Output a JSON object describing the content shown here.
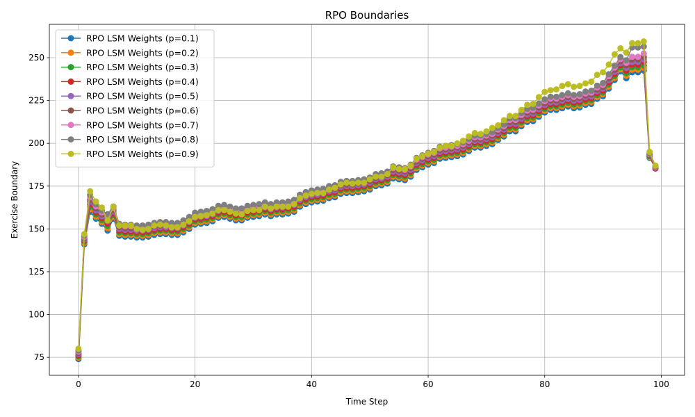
{
  "chart_data": {
    "type": "line",
    "title": "RPO Boundaries",
    "xlabel": "Time Step",
    "ylabel": "Exercise Boundary",
    "xlim": [
      -5,
      104
    ],
    "ylim": [
      64.5,
      269.5
    ],
    "xticks": [
      0,
      20,
      40,
      60,
      80,
      100
    ],
    "yticks": [
      75,
      100,
      125,
      150,
      175,
      200,
      225,
      250
    ],
    "grid": true,
    "legend_position": "upper left",
    "marker": "circle",
    "x": [
      0,
      1,
      2,
      3,
      4,
      5,
      6,
      7,
      8,
      9,
      10,
      11,
      12,
      13,
      14,
      15,
      16,
      17,
      18,
      19,
      20,
      21,
      22,
      23,
      24,
      25,
      26,
      27,
      28,
      29,
      30,
      31,
      32,
      33,
      34,
      35,
      36,
      37,
      38,
      39,
      40,
      41,
      42,
      43,
      44,
      45,
      46,
      47,
      48,
      49,
      50,
      51,
      52,
      53,
      54,
      55,
      56,
      57,
      58,
      59,
      60,
      61,
      62,
      63,
      64,
      65,
      66,
      67,
      68,
      69,
      70,
      71,
      72,
      73,
      74,
      75,
      76,
      77,
      78,
      79,
      80,
      81,
      82,
      83,
      84,
      85,
      86,
      87,
      88,
      89,
      90,
      91,
      92,
      93,
      94,
      95,
      96,
      97,
      98,
      99
    ],
    "series": [
      {
        "name": "RPO LSM Weights (p=0.1)",
        "color": "#1f77b4",
        "values": [
          74,
          141,
          160,
          156,
          153,
          149,
          156,
          146,
          145.5,
          145.5,
          145,
          145,
          145.5,
          146.5,
          147,
          147,
          146.5,
          146.5,
          148,
          150,
          152.5,
          153,
          153.5,
          154.5,
          156.5,
          157,
          156,
          155,
          155,
          156.5,
          157,
          157.5,
          158.5,
          157.5,
          158.5,
          158.5,
          159,
          160,
          163,
          164.5,
          165.5,
          166,
          166.5,
          168,
          168.5,
          170.5,
          171,
          171,
          171.5,
          172,
          173,
          175,
          175.5,
          176.5,
          179.5,
          179,
          178.5,
          180.5,
          184.5,
          186,
          187.5,
          188.5,
          191,
          191.5,
          192,
          192.5,
          193.5,
          195.5,
          197.5,
          197.5,
          198.5,
          199.5,
          202,
          204,
          207,
          207,
          210,
          212.5,
          213,
          215.5,
          218,
          219.5,
          219.5,
          220.5,
          221.5,
          220.5,
          221,
          222.5,
          223,
          226,
          227.5,
          232,
          237,
          242,
          238,
          241.5,
          241.5,
          242.5,
          191.5,
          185.5
        ]
      },
      {
        "name": "RPO LSM Weights (p=0.2)",
        "color": "#ff7f0e",
        "values": [
          74.8,
          141.8,
          161.5,
          157.2,
          154.1,
          150.4,
          157.1,
          147.0,
          146.5,
          146.5,
          146.0,
          146.0,
          146.5,
          147.5,
          148.0,
          148.0,
          147.5,
          147.5,
          149.0,
          151.0,
          153.5,
          154.0,
          154.5,
          155.5,
          157.5,
          158.0,
          157.0,
          156.0,
          156.0,
          157.5,
          158.0,
          158.5,
          159.5,
          158.5,
          159.5,
          159.5,
          160.0,
          161.0,
          164.0,
          165.5,
          166.5,
          167.0,
          167.5,
          169.0,
          169.5,
          171.5,
          172.0,
          172.0,
          172.5,
          173.0,
          174.0,
          176.0,
          176.5,
          177.5,
          180.5,
          180.0,
          179.5,
          181.5,
          185.5,
          187.0,
          188.5,
          189.5,
          192.0,
          192.5,
          193.0,
          193.5,
          194.5,
          196.5,
          198.5,
          198.5,
          199.5,
          200.5,
          203.0,
          205.0,
          208.1,
          208.1,
          211.1,
          213.6,
          214.1,
          216.6,
          219.1,
          220.6,
          220.6,
          221.6,
          222.6,
          221.6,
          222.1,
          223.6,
          224.1,
          227.1,
          228.6,
          233.2,
          238.2,
          243.2,
          239.5,
          243.0,
          243.0,
          244.0,
          192.0,
          185.7
        ]
      },
      {
        "name": "RPO LSM Weights (p=0.3)",
        "color": "#2ca02c",
        "values": [
          75.5,
          142.5,
          163.0,
          158.5,
          155.2,
          151.8,
          158.1,
          148.0,
          147.5,
          147.5,
          147.0,
          147.0,
          147.5,
          148.5,
          149.0,
          149.0,
          148.5,
          148.5,
          150.0,
          152.0,
          154.5,
          155.0,
          155.5,
          156.5,
          158.5,
          159.0,
          158.0,
          157.0,
          157.0,
          158.5,
          159.0,
          159.5,
          160.5,
          159.5,
          160.5,
          160.5,
          161.0,
          162.0,
          165.0,
          166.5,
          167.5,
          168.0,
          168.5,
          170.0,
          170.5,
          172.5,
          173.0,
          173.0,
          173.5,
          174.0,
          175.0,
          177.0,
          177.5,
          178.5,
          181.5,
          181.0,
          180.5,
          182.5,
          186.5,
          188.0,
          189.5,
          190.5,
          193.0,
          193.5,
          194.0,
          194.5,
          195.5,
          197.5,
          199.5,
          199.5,
          200.5,
          201.5,
          204.0,
          206.0,
          209.2,
          209.2,
          212.2,
          214.7,
          215.2,
          217.7,
          220.2,
          221.7,
          221.7,
          222.7,
          223.7,
          222.7,
          223.2,
          224.7,
          225.2,
          228.2,
          229.7,
          234.4,
          239.4,
          244.4,
          241.0,
          244.5,
          244.5,
          245.5,
          192.5,
          185.9
        ]
      },
      {
        "name": "RPO LSM Weights (p=0.4)",
        "color": "#d62728",
        "values": [
          76.2,
          143.2,
          164.4,
          159.6,
          156.3,
          153.1,
          159.1,
          149.0,
          148.5,
          148.5,
          148.0,
          148.0,
          148.5,
          149.5,
          150.0,
          150.0,
          149.5,
          149.5,
          151.0,
          153.0,
          155.5,
          156.0,
          156.5,
          157.5,
          159.5,
          160.0,
          159.0,
          158.0,
          158.0,
          159.5,
          160.0,
          160.5,
          161.5,
          160.5,
          161.5,
          161.5,
          162.0,
          163.0,
          166.0,
          167.5,
          168.5,
          169.0,
          169.5,
          171.0,
          171.5,
          173.5,
          174.0,
          174.0,
          174.5,
          175.0,
          176.0,
          178.0,
          178.5,
          179.5,
          182.5,
          182.0,
          181.5,
          183.5,
          187.5,
          189.0,
          190.5,
          191.5,
          194.0,
          194.5,
          195.0,
          195.5,
          196.5,
          198.5,
          200.5,
          200.5,
          201.5,
          202.5,
          205.0,
          207.0,
          210.3,
          210.3,
          213.3,
          215.8,
          216.3,
          218.8,
          221.3,
          222.8,
          222.8,
          223.8,
          224.8,
          223.8,
          224.3,
          225.8,
          226.3,
          229.3,
          230.8,
          235.6,
          240.6,
          245.6,
          242.5,
          246.0,
          246.0,
          247.5,
          192.8,
          185.3
        ]
      },
      {
        "name": "RPO LSM Weights (p=0.5)",
        "color": "#9467bd",
        "values": [
          76.9,
          143.9,
          165.8,
          160.8,
          157.4,
          154.5,
          160.1,
          150.0,
          149.5,
          149.5,
          149.0,
          149.0,
          149.5,
          150.5,
          151.0,
          151.0,
          150.5,
          150.5,
          152.0,
          154.0,
          156.5,
          157.0,
          157.5,
          158.5,
          160.5,
          161.0,
          160.0,
          159.0,
          159.0,
          160.5,
          161.0,
          161.5,
          162.5,
          161.5,
          162.5,
          162.5,
          163.0,
          164.0,
          167.0,
          168.5,
          169.5,
          170.0,
          170.5,
          172.0,
          172.5,
          174.5,
          175.0,
          175.0,
          175.5,
          176.0,
          177.0,
          179.0,
          179.5,
          180.5,
          183.5,
          183.0,
          182.5,
          184.5,
          188.5,
          190.0,
          191.5,
          192.5,
          195.0,
          195.5,
          196.0,
          196.5,
          197.5,
          199.5,
          201.5,
          201.5,
          202.5,
          203.5,
          206.0,
          208.0,
          211.4,
          211.4,
          214.4,
          216.9,
          217.4,
          219.9,
          222.4,
          223.9,
          223.9,
          224.9,
          225.9,
          224.9,
          225.4,
          226.9,
          227.4,
          230.4,
          231.9,
          236.8,
          241.8,
          246.8,
          244.0,
          247.5,
          247.5,
          249.0,
          193.2,
          185.8
        ]
      },
      {
        "name": "RPO LSM Weights (p=0.6)",
        "color": "#8c564b",
        "values": [
          77.6,
          144.6,
          167.1,
          162.0,
          158.5,
          155.8,
          161.1,
          151.0,
          150.5,
          150.5,
          150.0,
          150.0,
          150.5,
          151.5,
          152.0,
          152.0,
          151.5,
          151.5,
          153.0,
          155.0,
          157.5,
          158.0,
          158.5,
          159.5,
          161.5,
          162.0,
          161.0,
          160.0,
          160.0,
          161.5,
          162.0,
          162.5,
          163.5,
          162.5,
          163.5,
          163.5,
          164.0,
          165.0,
          168.0,
          169.5,
          170.5,
          171.0,
          171.5,
          173.0,
          173.5,
          175.5,
          176.0,
          176.0,
          176.5,
          177.0,
          178.0,
          180.0,
          180.5,
          181.5,
          184.5,
          184.0,
          183.5,
          185.5,
          189.5,
          191.0,
          192.5,
          193.5,
          196.0,
          196.5,
          197.0,
          197.5,
          198.5,
          200.5,
          202.5,
          202.5,
          203.5,
          204.5,
          207.0,
          209.0,
          212.5,
          212.5,
          215.5,
          218.0,
          218.5,
          221.0,
          223.5,
          225.0,
          225.0,
          226.0,
          227.0,
          226.0,
          226.5,
          228.0,
          228.5,
          231.5,
          233.0,
          238.0,
          243.0,
          248.0,
          245.5,
          249.0,
          249.0,
          250.5,
          193.4,
          186.1
        ]
      },
      {
        "name": "RPO LSM Weights (p=0.7)",
        "color": "#e377c2",
        "values": [
          78.3,
          145.3,
          168.5,
          163.2,
          159.6,
          157.2,
          162.1,
          152.0,
          151.5,
          151.5,
          151.0,
          151.0,
          151.5,
          152.5,
          153.0,
          153.0,
          152.5,
          152.5,
          154.0,
          156.0,
          158.5,
          159.0,
          159.5,
          160.5,
          162.5,
          163.0,
          162.0,
          161.0,
          161.0,
          162.5,
          163.0,
          163.5,
          164.5,
          163.5,
          164.5,
          164.5,
          165.0,
          166.0,
          169.0,
          170.5,
          171.5,
          172.0,
          172.5,
          174.0,
          174.5,
          176.5,
          177.0,
          177.0,
          177.5,
          178.0,
          179.0,
          181.0,
          181.5,
          182.5,
          185.5,
          185.0,
          184.5,
          186.5,
          190.5,
          192.0,
          193.5,
          194.5,
          197.0,
          197.5,
          198.0,
          198.5,
          199.5,
          201.5,
          203.5,
          203.5,
          204.5,
          205.5,
          208.0,
          210.0,
          213.6,
          213.6,
          216.6,
          219.1,
          219.6,
          222.1,
          224.6,
          226.1,
          226.1,
          227.1,
          228.1,
          227.1,
          227.6,
          229.1,
          229.6,
          232.6,
          234.1,
          239.2,
          244.2,
          249.2,
          247.0,
          250.5,
          250.5,
          252.5,
          193.7,
          186.4
        ]
      },
      {
        "name": "RPO LSM Weights (p=0.8)",
        "color": "#7f7f7f",
        "values": [
          79.0,
          146.0,
          169.9,
          164.4,
          160.7,
          158.6,
          163.1,
          153.0,
          152.5,
          152.5,
          152.0,
          152.0,
          152.5,
          153.5,
          154.0,
          154.0,
          153.5,
          153.5,
          155.0,
          157.0,
          159.5,
          160.0,
          160.5,
          161.5,
          163.5,
          164.0,
          163.0,
          162.0,
          162.0,
          163.5,
          164.0,
          164.5,
          165.5,
          164.5,
          165.5,
          165.5,
          166.0,
          167.0,
          170.0,
          171.5,
          172.5,
          173.0,
          173.5,
          175.0,
          175.5,
          177.5,
          178.0,
          178.0,
          178.5,
          179.0,
          180.0,
          182.0,
          182.5,
          183.5,
          186.5,
          186.0,
          185.5,
          187.5,
          191.5,
          193.0,
          194.5,
          195.5,
          198.0,
          198.5,
          199.0,
          199.5,
          200.5,
          202.5,
          204.5,
          204.5,
          205.5,
          206.5,
          209.0,
          211.0,
          214.7,
          214.7,
          217.7,
          220.2,
          220.7,
          223.2,
          225.7,
          227.2,
          227.2,
          228.2,
          229.2,
          228.2,
          228.7,
          230.2,
          230.7,
          233.7,
          235.2,
          240.4,
          245.4,
          250.4,
          248.5,
          256.0,
          256.0,
          256.5,
          194.0,
          186.7
        ]
      },
      {
        "name": "RPO LSM Weights (p=0.9)",
        "color": "#bcbd22",
        "values": [
          80,
          147,
          172,
          166,
          162.5,
          155,
          163,
          152,
          152,
          152,
          150,
          149.5,
          150,
          152,
          152.5,
          152,
          151,
          151,
          152.5,
          154.5,
          157,
          157.5,
          158,
          159,
          161,
          161,
          160,
          159,
          158.5,
          160.5,
          161,
          161,
          163,
          162,
          163,
          163,
          163,
          164.5,
          168,
          169.5,
          170.5,
          171,
          171,
          173,
          174,
          176,
          177,
          176.5,
          177,
          177,
          179,
          180.5,
          180.5,
          182,
          186,
          185,
          185,
          187,
          191,
          192.5,
          194,
          195,
          197.5,
          198.5,
          198.5,
          200,
          201.5,
          204,
          206,
          205.5,
          207,
          209,
          210.5,
          213.5,
          216,
          216,
          219.5,
          222.5,
          223,
          227,
          230,
          231,
          231.5,
          233.5,
          234.5,
          233,
          233.5,
          235,
          236,
          240,
          241.5,
          246,
          252,
          255.5,
          253,
          258.5,
          258.5,
          259.5,
          195,
          187
        ]
      }
    ]
  }
}
